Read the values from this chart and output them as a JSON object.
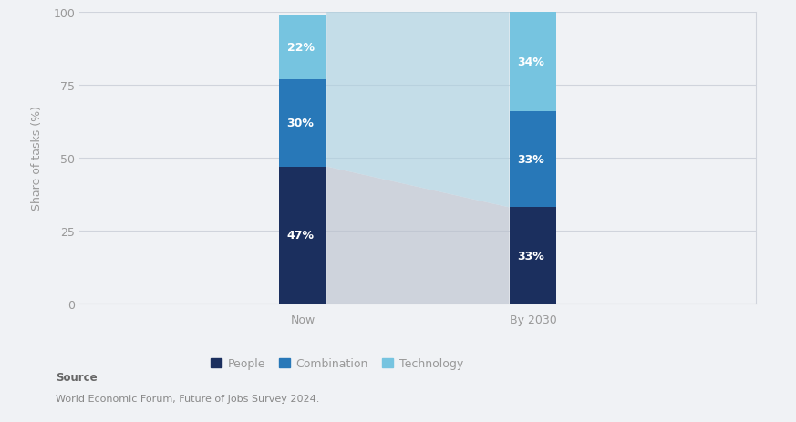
{
  "categories": [
    "Now",
    "By 2030"
  ],
  "people": [
    47,
    33
  ],
  "combination": [
    30,
    33
  ],
  "technology": [
    22,
    34
  ],
  "colors": {
    "people": "#1b2f5e",
    "combination": "#2878b8",
    "technology": "#76c4e0"
  },
  "connector_bottom_color": "#b8bfcc",
  "connector_top_color": "#a8cfe0",
  "connector_alpha": 0.6,
  "ylabel": "Share of tasks (%)",
  "ylim": [
    0,
    100
  ],
  "yticks": [
    0,
    25,
    50,
    75,
    100
  ],
  "bar_width": 0.07,
  "bar_positions": [
    0.33,
    0.67
  ],
  "xlim": [
    0.0,
    1.0
  ],
  "legend_labels": [
    "People",
    "Combination",
    "Technology"
  ],
  "source_label": "Source",
  "source_text": "World Economic Forum, Future of Jobs Survey 2024.",
  "background_color": "#f0f2f5",
  "plot_bg_color": "#f0f2f5",
  "grid_color": "#d0d4dc",
  "label_fontsize": 9,
  "tick_color": "#999999",
  "ylabel_fontsize": 9
}
